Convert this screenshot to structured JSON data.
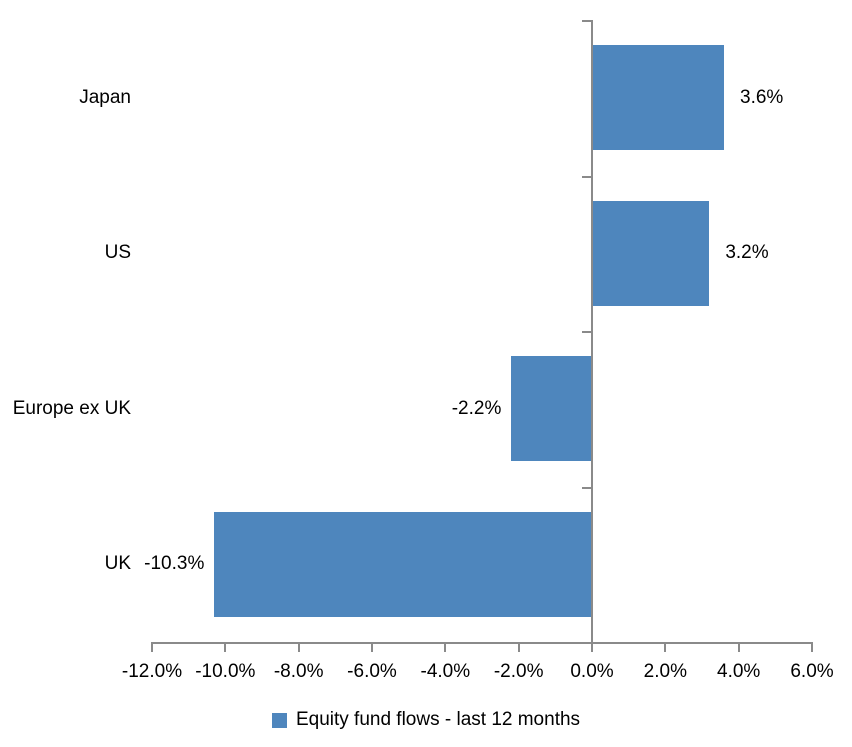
{
  "chart_data": {
    "type": "bar",
    "orientation": "horizontal",
    "title": "",
    "xlabel": "",
    "ylabel": "",
    "categories": [
      "Japan",
      "US",
      "Europe ex UK",
      "UK"
    ],
    "series": [
      {
        "name": "Equity fund flows - last 12 months",
        "values": [
          3.6,
          3.2,
          -2.2,
          -10.3
        ],
        "data_labels": [
          "3.6%",
          "3.2%",
          "-2.2%",
          "-10.3%"
        ]
      }
    ],
    "xlim": [
      -12,
      6
    ],
    "x_tick_values": [
      -12,
      -10,
      -8,
      -6,
      -4,
      -2,
      0,
      2,
      4,
      6
    ],
    "x_tick_labels": [
      "-12.0%",
      "-10.0%",
      "-8.0%",
      "-6.0%",
      "-4.0%",
      "-2.0%",
      "0.0%",
      "2.0%",
      "4.0%",
      "6.0%"
    ],
    "grid": false,
    "legend_position": "bottom",
    "colors": {
      "bar": "#4E86BD",
      "axis": "#8A8A8A",
      "text": "#000000",
      "background": "#FFFFFF"
    }
  },
  "legend": {
    "label": "Equity fund flows - last 12 months"
  }
}
